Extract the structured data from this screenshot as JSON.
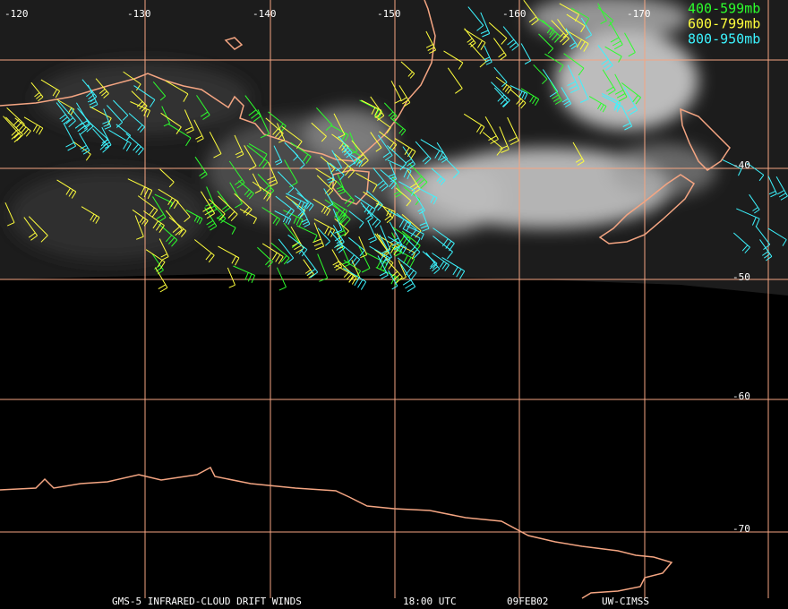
{
  "map": {
    "longitude_labels": [
      "-120",
      "-130",
      "-140",
      "-150",
      "-160",
      "-170"
    ],
    "latitude_labels": [
      "-40",
      "-50",
      "-60",
      "-70"
    ]
  },
  "legend": [
    {
      "label": "400-599mb",
      "color": "#2cff2c"
    },
    {
      "label": "600-799mb",
      "color": "#ffff3c"
    },
    {
      "label": "800-950mb",
      "color": "#3cf4ff"
    }
  ],
  "footer": {
    "product": "GMS-5 INFRARED-CLOUD DRIFT WINDS",
    "time": "18:00 UTC",
    "date": "09FEB02",
    "source": "UW-CIMSS"
  }
}
